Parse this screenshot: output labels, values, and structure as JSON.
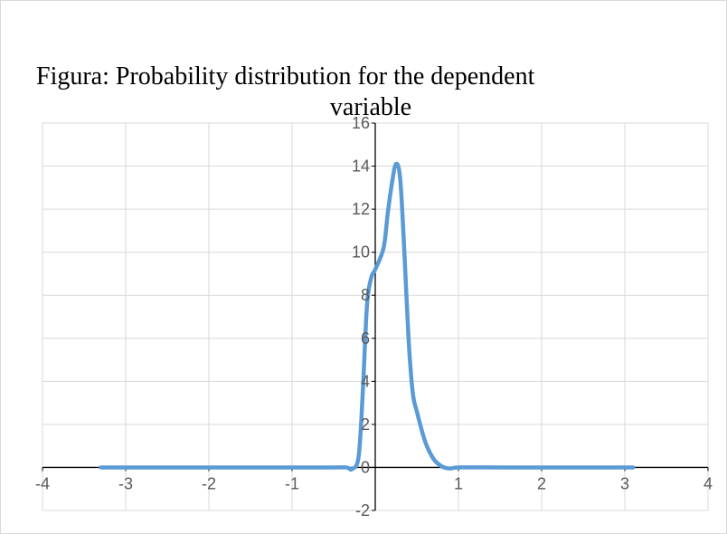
{
  "chart_data": {
    "type": "line",
    "title_lines": [
      "Figura: Probability distribution for the dependent",
      "variable"
    ],
    "xlabel": "",
    "ylabel": "",
    "xlim": [
      -4,
      4
    ],
    "ylim": [
      -2,
      16
    ],
    "x_ticks": [
      -4,
      -3,
      -2,
      -1,
      0,
      1,
      2,
      3,
      4
    ],
    "x_tick_labels": [
      "-4",
      "-3",
      "-2",
      "-1",
      "0",
      "1",
      "2",
      "3",
      "4"
    ],
    "y_ticks": [
      -2,
      0,
      2,
      4,
      6,
      8,
      10,
      12,
      14,
      16
    ],
    "y_tick_labels": [
      "-2",
      "0",
      "2",
      "4",
      "6",
      "8",
      "10",
      "12",
      "14",
      "16"
    ],
    "grid": true,
    "legend": "none",
    "series": [
      {
        "color": "#5b9bd5",
        "points": [
          [
            -3.3,
            0
          ],
          [
            -2.5,
            0
          ],
          [
            -1.5,
            0
          ],
          [
            -0.6,
            0
          ],
          [
            -0.35,
            0
          ],
          [
            -0.28,
            -0.08
          ],
          [
            -0.2,
            0.5
          ],
          [
            -0.15,
            3.5
          ],
          [
            -0.1,
            7.5
          ],
          [
            -0.05,
            8.8
          ],
          [
            0.0,
            9.2
          ],
          [
            0.1,
            10.2
          ],
          [
            0.15,
            11.8
          ],
          [
            0.2,
            13.2
          ],
          [
            0.25,
            14.1
          ],
          [
            0.3,
            13.4
          ],
          [
            0.35,
            10.0
          ],
          [
            0.4,
            6.0
          ],
          [
            0.45,
            3.5
          ],
          [
            0.5,
            2.6
          ],
          [
            0.6,
            1.2
          ],
          [
            0.7,
            0.4
          ],
          [
            0.8,
            0.05
          ],
          [
            0.9,
            -0.05
          ],
          [
            1.0,
            0
          ],
          [
            1.5,
            0
          ],
          [
            2.0,
            0
          ],
          [
            2.5,
            0
          ],
          [
            3.1,
            0
          ]
        ]
      }
    ]
  }
}
